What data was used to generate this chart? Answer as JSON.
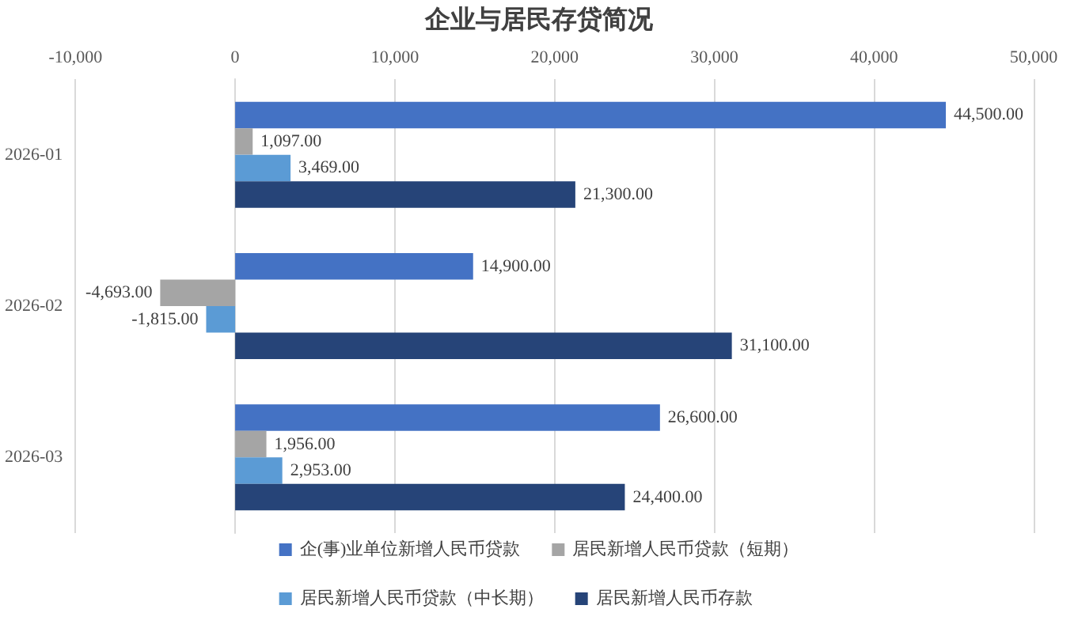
{
  "chart_data": {
    "type": "bar",
    "orientation": "horizontal",
    "title": "企业与居民存贷简况",
    "categories": [
      "2026-01",
      "2026-02",
      "2026-03"
    ],
    "series": [
      {
        "name": "企(事)业单位新增人民币贷款",
        "color": "#4472c4",
        "values": [
          44500,
          14900,
          26600
        ],
        "value_labels": [
          "44,500.00",
          "14,900.00",
          "26,600.00"
        ]
      },
      {
        "name": "居民新增人民币贷款（短期）",
        "color": "#a5a5a5",
        "values": [
          1097,
          -4693,
          1956
        ],
        "value_labels": [
          "1,097.00",
          "-4,693.00",
          "1,956.00"
        ]
      },
      {
        "name": "居民新增人民币贷款（中长期）",
        "color": "#5b9bd5",
        "values": [
          3469,
          -1815,
          2953
        ],
        "value_labels": [
          "3,469.00",
          "-1,815.00",
          "2,953.00"
        ]
      },
      {
        "name": "居民新增人民币存款",
        "color": "#264478",
        "values": [
          21300,
          31100,
          24400
        ],
        "value_labels": [
          "21,300.00",
          "31,100.00",
          "24,400.00"
        ]
      }
    ],
    "xlim": [
      -10000,
      50000
    ],
    "xticks": [
      {
        "value": -10000,
        "label": "-10,000"
      },
      {
        "value": 0,
        "label": "0"
      },
      {
        "value": 10000,
        "label": "10,000"
      },
      {
        "value": 20000,
        "label": "20,000"
      },
      {
        "value": 30000,
        "label": "30,000"
      },
      {
        "value": 40000,
        "label": "40,000"
      },
      {
        "value": 50000,
        "label": "50,000"
      }
    ],
    "grid": "x",
    "legend": "bottom"
  }
}
